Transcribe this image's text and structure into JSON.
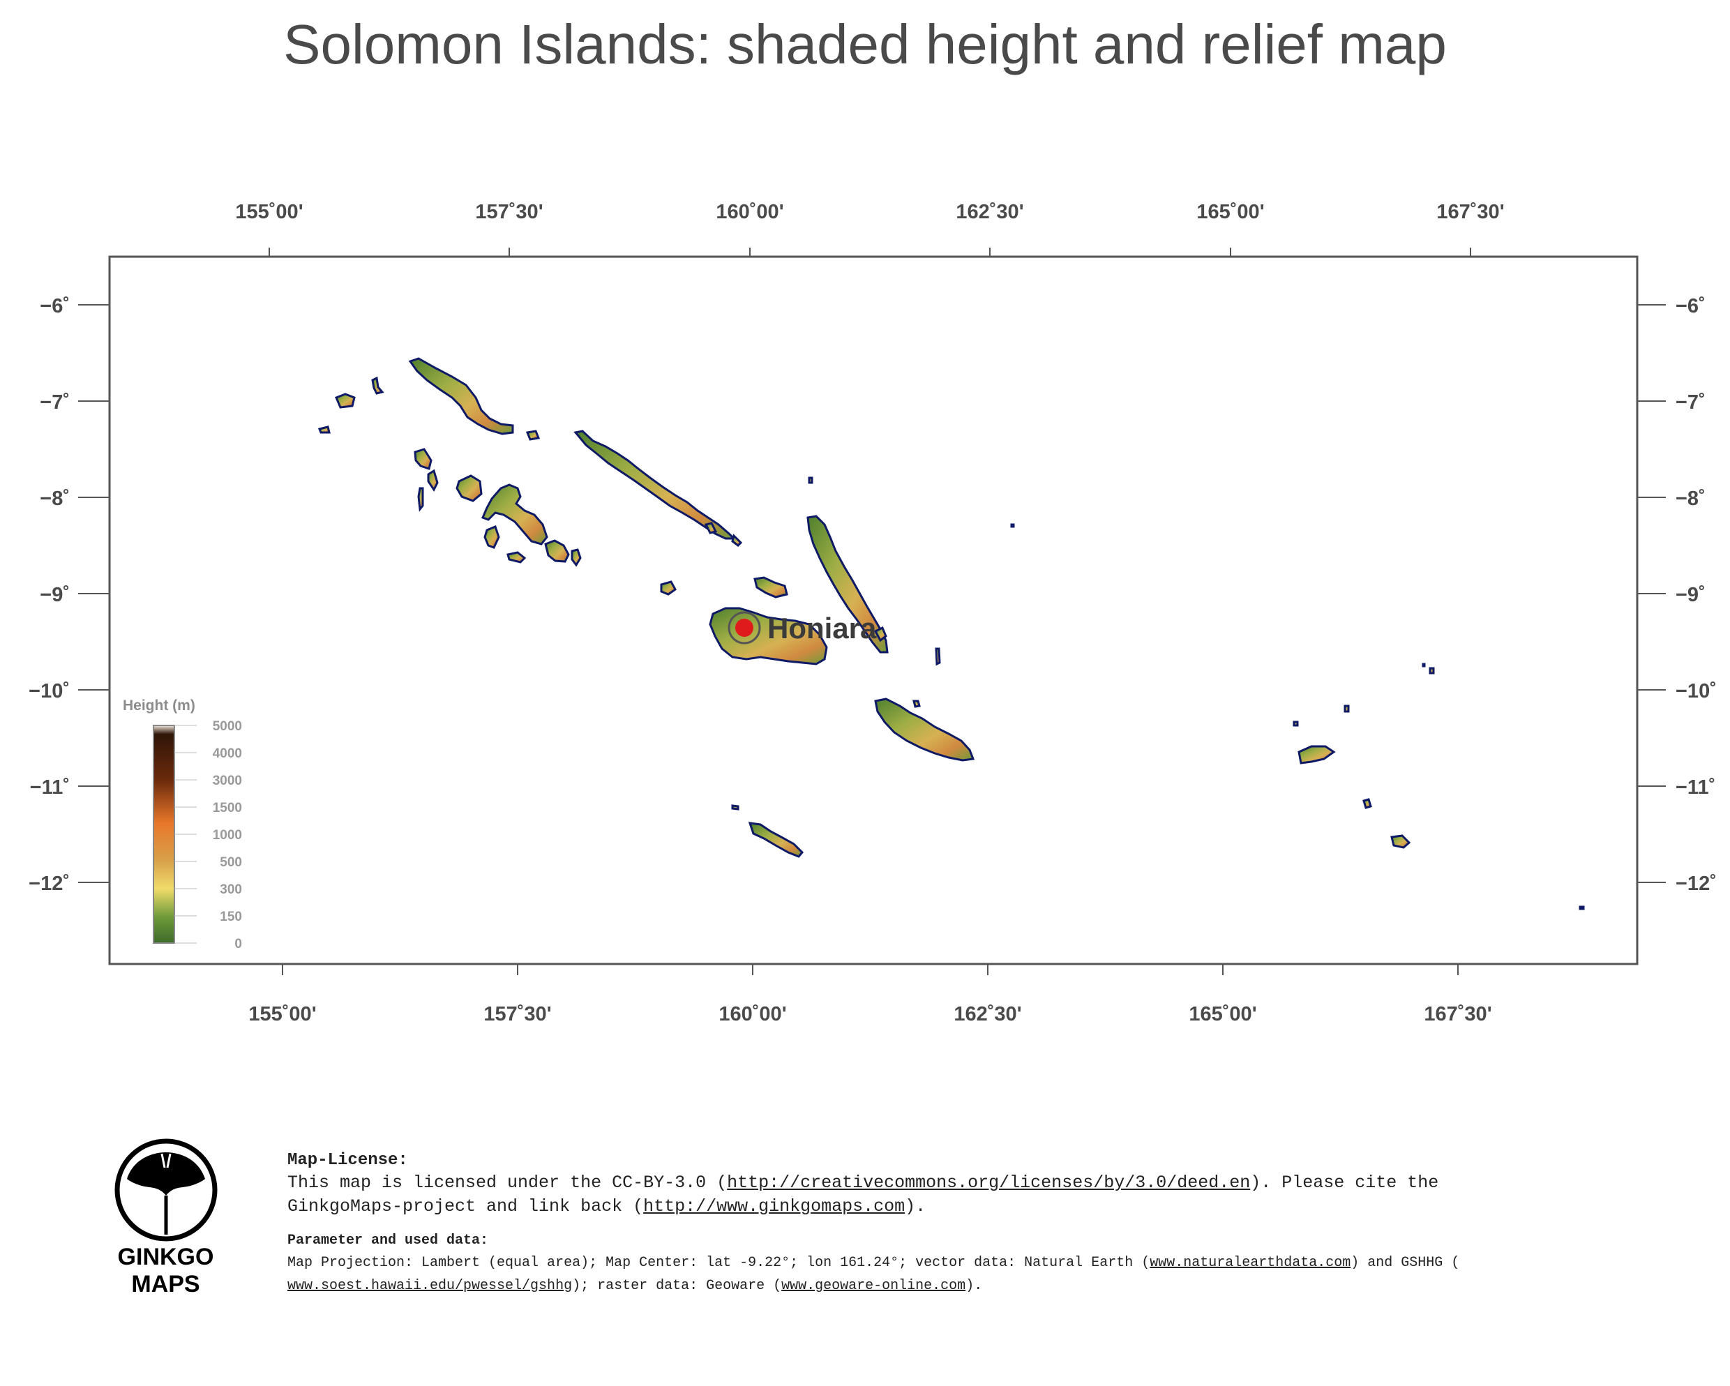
{
  "title": "Solomon Islands: shaded height and relief map",
  "axes": {
    "top_lon_labels": [
      "155˚00'",
      "157˚30'",
      "160˚00'",
      "162˚30'",
      "165˚00'",
      "167˚30'"
    ],
    "bottom_lon_labels": [
      "155˚00'",
      "157˚30'",
      "160˚00'",
      "162˚30'",
      "165˚00'",
      "167˚30'"
    ],
    "lat_labels": [
      "−6˚",
      "−7˚",
      "−8˚",
      "−9˚",
      "−10˚",
      "−11˚",
      "−12˚"
    ]
  },
  "legend": {
    "title": "Height  (m)",
    "labels": [
      "5000",
      "4000",
      "3000",
      "1500",
      "1000",
      "500",
      "300",
      "150",
      "0"
    ],
    "colors": [
      "#2f1608",
      "#6b2a0c",
      "#b2450f",
      "#e8782a",
      "#d7a04a",
      "#e6c85a",
      "#b8c44a",
      "#6f9a3a",
      "#3d6b2a"
    ]
  },
  "city": {
    "name": "Honiara",
    "marker_color": "#e01b1b"
  },
  "colors": {
    "coast": "#0f1a66",
    "land_low": "#4f7f2e",
    "land_mid": "#b9b04a",
    "land_high": "#d59a45",
    "frame": "#555555"
  },
  "license": {
    "heading": "Map-License:",
    "line1_a": "This map is licensed under the CC-BY-3.0 (",
    "line1_link": "http://creativecommons.org/licenses/by/3.0/deed.en",
    "line1_b": ").  Please cite the",
    "line2_a": "GinkgoMaps-project and link back (",
    "line2_link": "http://www.ginkgomaps.com",
    "line2_b": ")."
  },
  "parameters": {
    "heading": "Parameter and used data:",
    "line1_a": "Map Projection: Lambert (equal area); Map Center: lat -9.22°; lon 161.24°; vector data: Natural Earth (",
    "line1_link": "www.naturalearthdata.com",
    "line1_b": ") and GSHHG (",
    "line2_link": "www.soest.hawaii.edu/pwessel/gshhg",
    "line2_b": "); raster data: Geoware (",
    "line2_link2": "www.geoware-online.com",
    "line2_c": ")."
  },
  "logo": {
    "line1": "GINKGO",
    "line2": "MAPS"
  }
}
